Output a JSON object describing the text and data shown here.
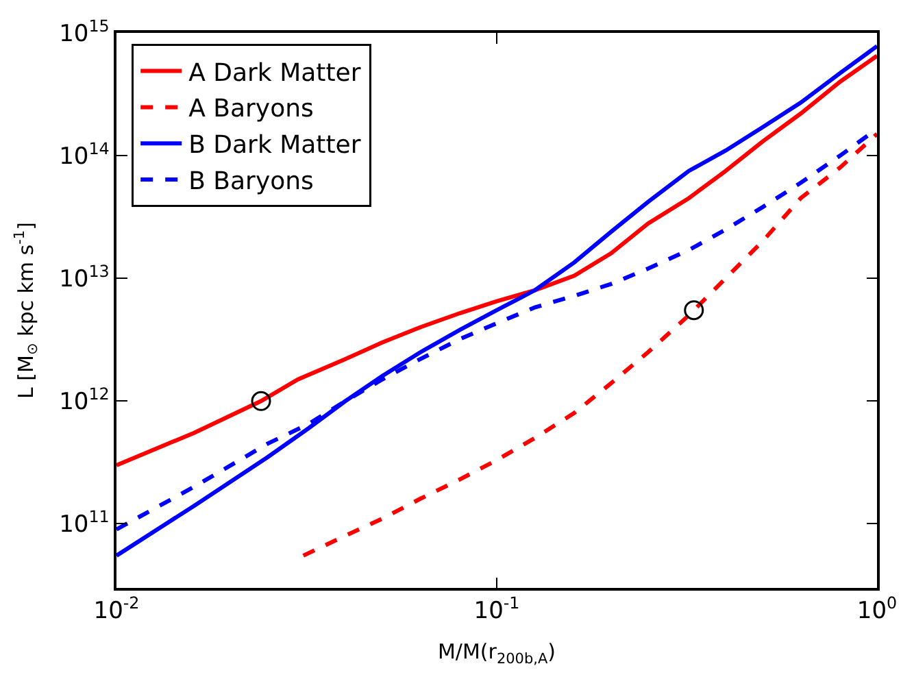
{
  "chart_data": {
    "type": "line",
    "xlabel": "M/M(r$_{200b,A}$)",
    "ylabel": "L [M$_{⊙}$ kpc km s$^{-1}$]",
    "log": "xy",
    "legend": "top left",
    "marker": "none",
    "xlim": [
      0.01,
      1
    ],
    "ylim": [
      30000000000.0,
      1000000000000000.0
    ],
    "xticks": [
      {
        "value": 0.01,
        "label": "10$^{-2}$"
      },
      {
        "value": 0.1,
        "label": "10$^{-1}$"
      },
      {
        "value": 1,
        "label": "10$^{0}$"
      }
    ],
    "yticks": [
      {
        "value": 100000000000.0,
        "label": "10$^{11}$"
      },
      {
        "value": 1000000000000.0,
        "label": "10$^{12}$"
      },
      {
        "value": 10000000000000.0,
        "label": "10$^{13}$"
      },
      {
        "value": 100000000000000.0,
        "label": "10$^{14}$"
      },
      {
        "value": 1000000000000000.0,
        "label": "10$^{15}$"
      }
    ],
    "series": [
      {
        "name": "A Dark Matter",
        "color": "#ff0000",
        "line_style": "solid",
        "x": [
          0.01,
          0.016,
          0.024,
          0.03,
          0.04,
          0.05,
          0.063,
          0.08,
          0.1,
          0.126,
          0.16,
          0.2,
          0.25,
          0.32,
          0.4,
          0.5,
          0.63,
          0.8,
          1
        ],
        "values": [
          300000000000.0,
          550000000000.0,
          1000000000000.0,
          1500000000000.0,
          2200000000000.0,
          3000000000000.0,
          4000000000000.0,
          5200000000000.0,
          6500000000000.0,
          8000000000000.0,
          10500000000000.0,
          16000000000000.0,
          28000000000000.0,
          45000000000000.0,
          75000000000000.0,
          130000000000000.0,
          220000000000000.0,
          400000000000000.0,
          650000000000000.0
        ]
      },
      {
        "name": "A Baryons",
        "color": "#ff0000",
        "line_style": "dashed",
        "x": [
          0.031,
          0.04,
          0.05,
          0.063,
          0.08,
          0.1,
          0.126,
          0.16,
          0.2,
          0.25,
          0.32,
          0.4,
          0.5,
          0.63,
          0.8,
          1
        ],
        "values": [
          55000000000.0,
          80000000000.0,
          110000000000.0,
          160000000000.0,
          230000000000.0,
          330000000000.0,
          500000000000.0,
          800000000000.0,
          1400000000000.0,
          2500000000000.0,
          5000000000000.0,
          10000000000000.0,
          20000000000000.0,
          45000000000000.0,
          80000000000000.0,
          150000000000000.0
        ]
      },
      {
        "name": "B Dark Matter",
        "color": "#0000ff",
        "line_style": "solid",
        "x": [
          0.01,
          0.016,
          0.025,
          0.032,
          0.04,
          0.05,
          0.063,
          0.08,
          0.1,
          0.126,
          0.16,
          0.2,
          0.25,
          0.32,
          0.4,
          0.5,
          0.63,
          0.8,
          1
        ],
        "values": [
          55000000000.0,
          140000000000.0,
          350000000000.0,
          600000000000.0,
          1000000000000.0,
          1600000000000.0,
          2500000000000.0,
          3800000000000.0,
          5500000000000.0,
          8000000000000.0,
          13500000000000.0,
          24000000000000.0,
          42000000000000.0,
          75000000000000.0,
          110000000000000.0,
          170000000000000.0,
          270000000000000.0,
          470000000000000.0,
          780000000000000.0
        ]
      },
      {
        "name": "B Baryons",
        "color": "#0000ff",
        "line_style": "dashed",
        "x": [
          0.01,
          0.016,
          0.025,
          0.032,
          0.04,
          0.05,
          0.063,
          0.08,
          0.1,
          0.126,
          0.16,
          0.2,
          0.25,
          0.32,
          0.4,
          0.5,
          0.63,
          0.8,
          1
        ],
        "values": [
          90000000000.0,
          200000000000.0,
          450000000000.0,
          650000000000.0,
          1000000000000.0,
          1500000000000.0,
          2200000000000.0,
          3200000000000.0,
          4300000000000.0,
          5800000000000.0,
          7200000000000.0,
          9000000000000.0,
          12000000000000.0,
          17000000000000.0,
          25000000000000.0,
          38000000000000.0,
          60000000000000.0,
          100000000000000.0,
          165000000000000.0
        ]
      },
      {
        "type": "scatter",
        "marker": "circle",
        "color": "#000000",
        "x": [
          0.024,
          0.33
        ],
        "values": [
          1000000000000.0,
          5500000000000.0
        ]
      }
    ]
  }
}
